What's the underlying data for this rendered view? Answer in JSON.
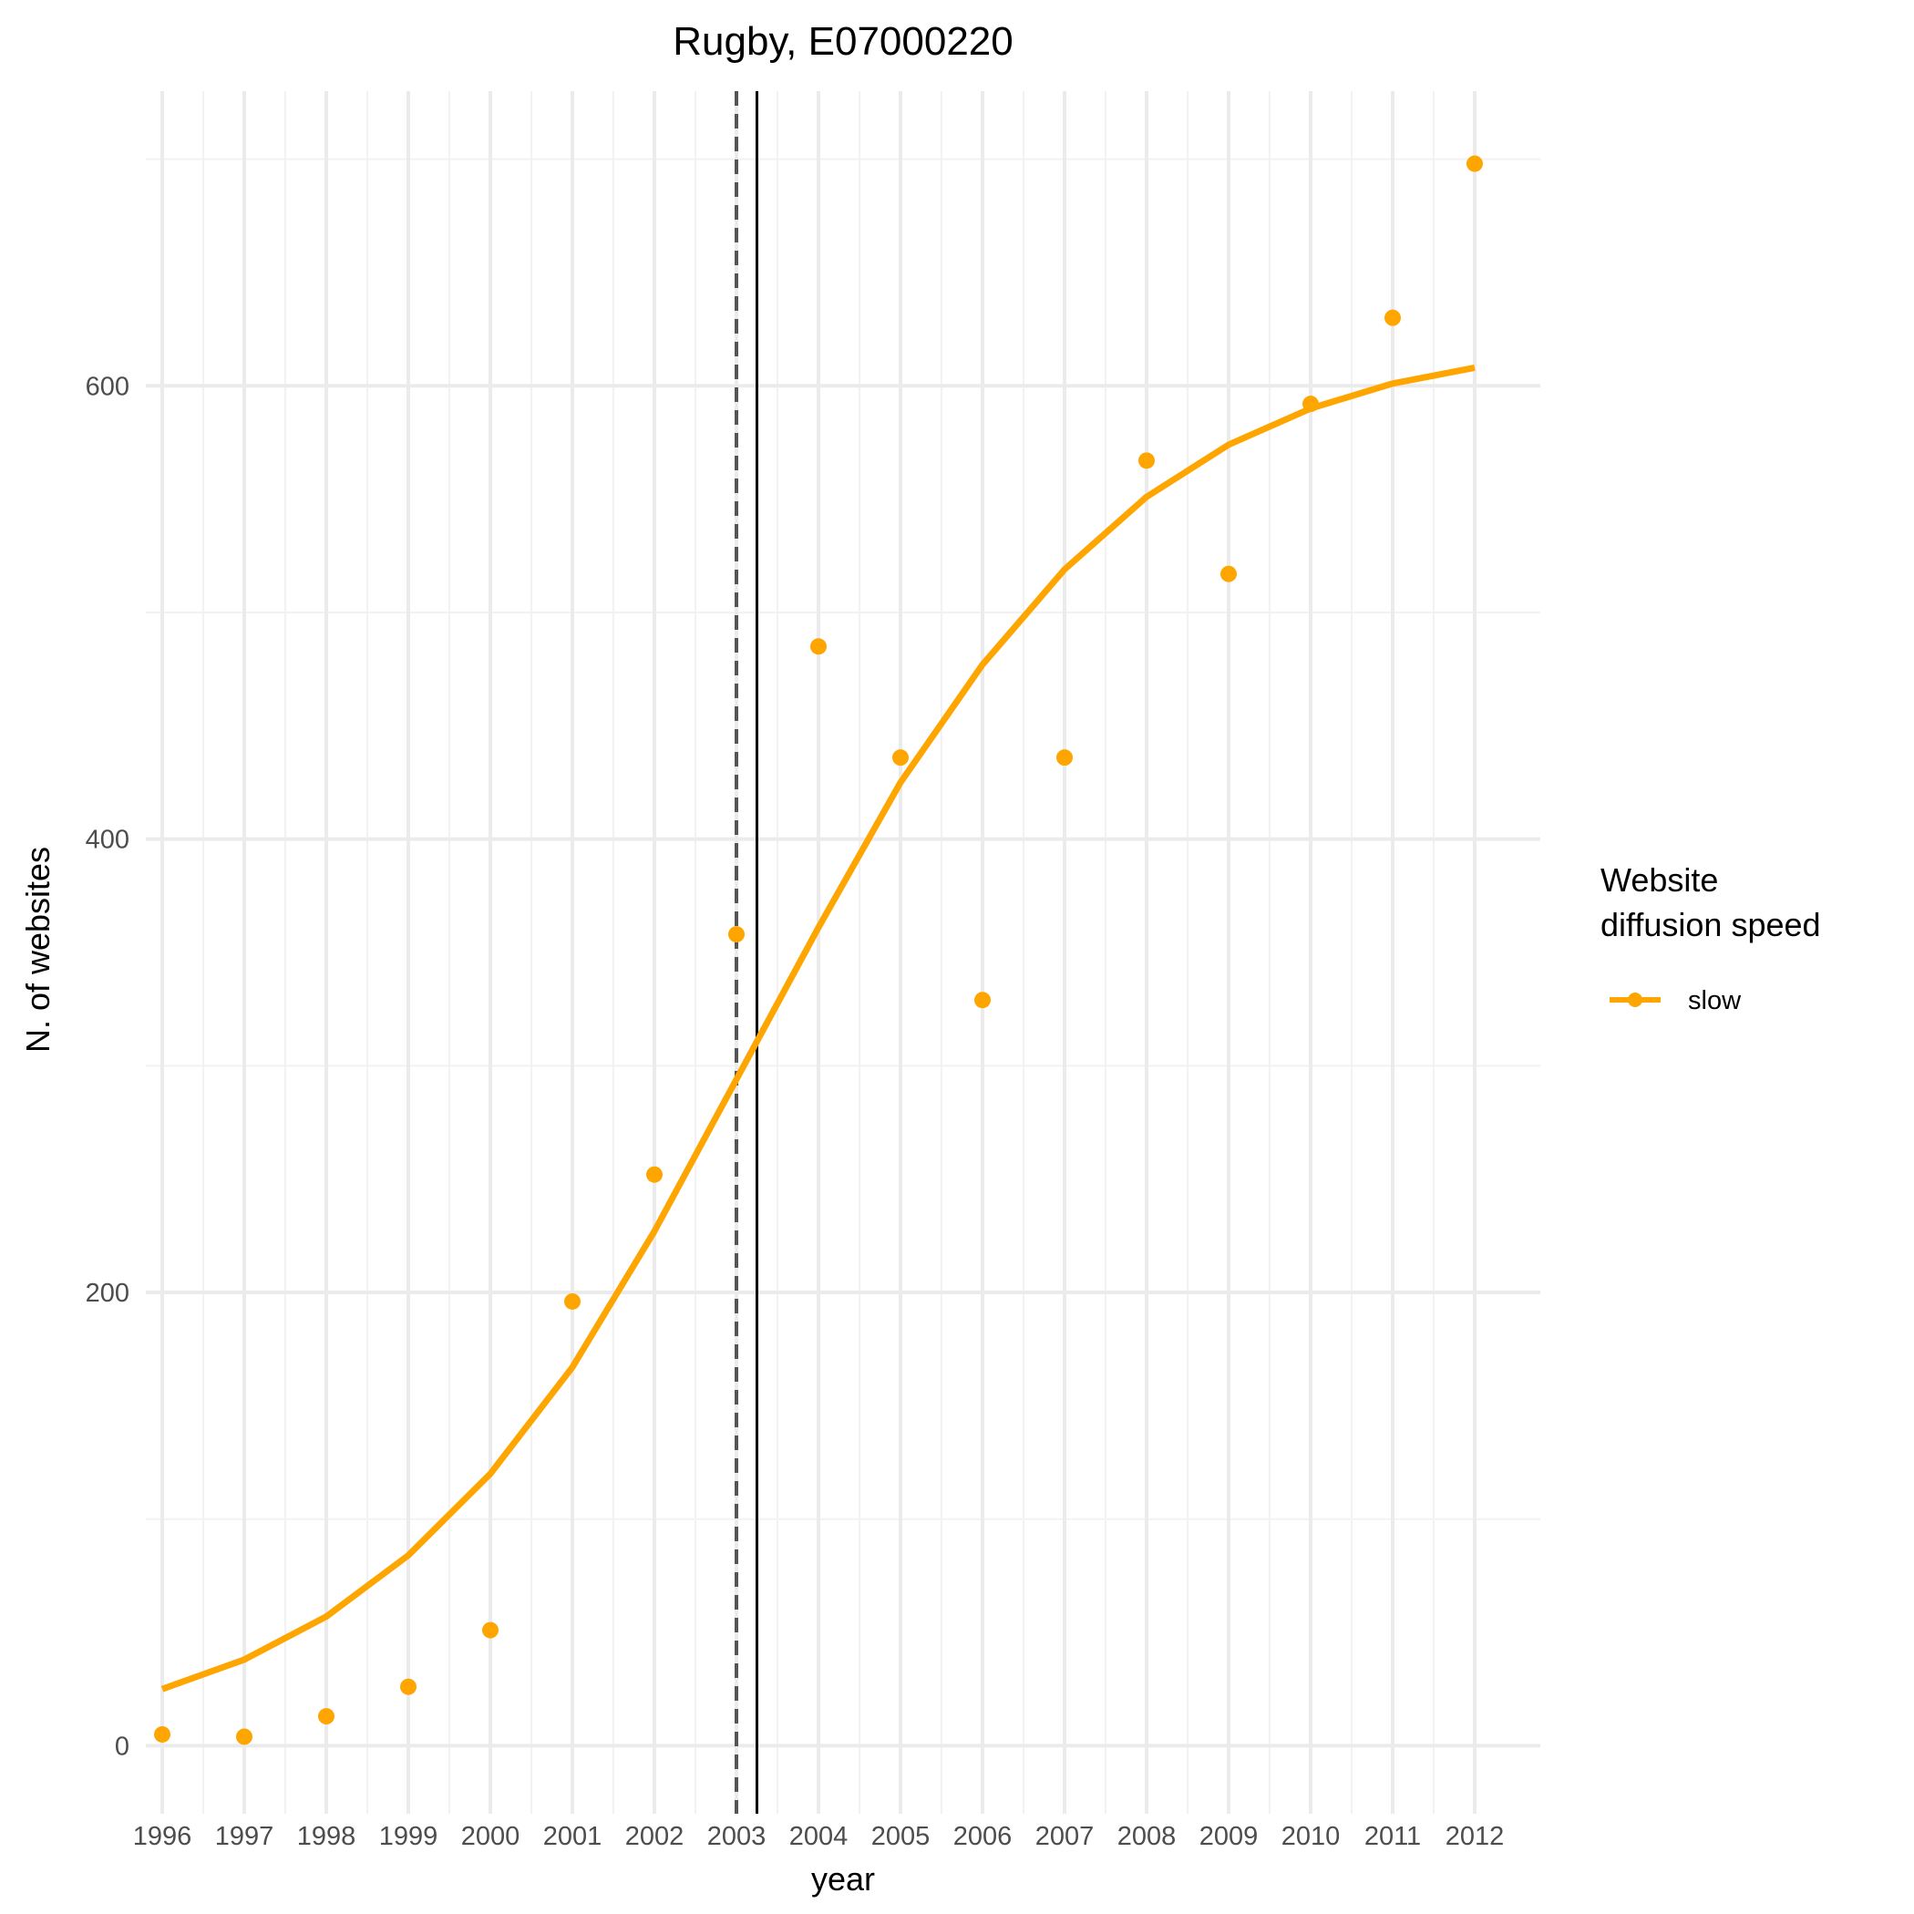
{
  "chart_data": {
    "type": "scatter",
    "title": "Rugby, E07000220",
    "xlabel": "year",
    "ylabel": "N. of websites",
    "x": [
      1996,
      1997,
      1998,
      1999,
      2000,
      2001,
      2002,
      2003,
      2004,
      2005,
      2006,
      2007,
      2008,
      2009,
      2010,
      2011,
      2012
    ],
    "x_tick_labels": [
      "1996",
      "1997",
      "1998",
      "1999",
      "2000",
      "2001",
      "2002",
      "2003",
      "2004",
      "2005",
      "2006",
      "2007",
      "2008",
      "2009",
      "2010",
      "2011",
      "2012"
    ],
    "y_ticks": [
      0,
      200,
      400,
      600
    ],
    "y_tick_labels": [
      "0",
      "200",
      "400",
      "600"
    ],
    "xlim": [
      1995.8,
      2012.8
    ],
    "ylim": [
      -30,
      730
    ],
    "grid": true,
    "series": [
      {
        "name": "slow",
        "color": "#FFA500",
        "points": [
          5,
          4,
          13,
          26,
          51,
          196,
          252,
          358,
          485,
          436,
          329,
          436,
          567,
          517,
          592,
          630,
          698
        ],
        "fitted_line": [
          25,
          38,
          57,
          84,
          120,
          167,
          227,
          294,
          361,
          425,
          477,
          519,
          551,
          574,
          590,
          601,
          608
        ]
      }
    ],
    "vertical_lines": [
      {
        "x": 2003,
        "style": "dashed",
        "color": "#555555"
      },
      {
        "x": 2003.25,
        "style": "solid",
        "color": "#000000"
      }
    ],
    "legend": {
      "title_lines": [
        "Website",
        "diffusion speed"
      ],
      "entries": [
        "slow"
      ],
      "placement": "right"
    }
  }
}
